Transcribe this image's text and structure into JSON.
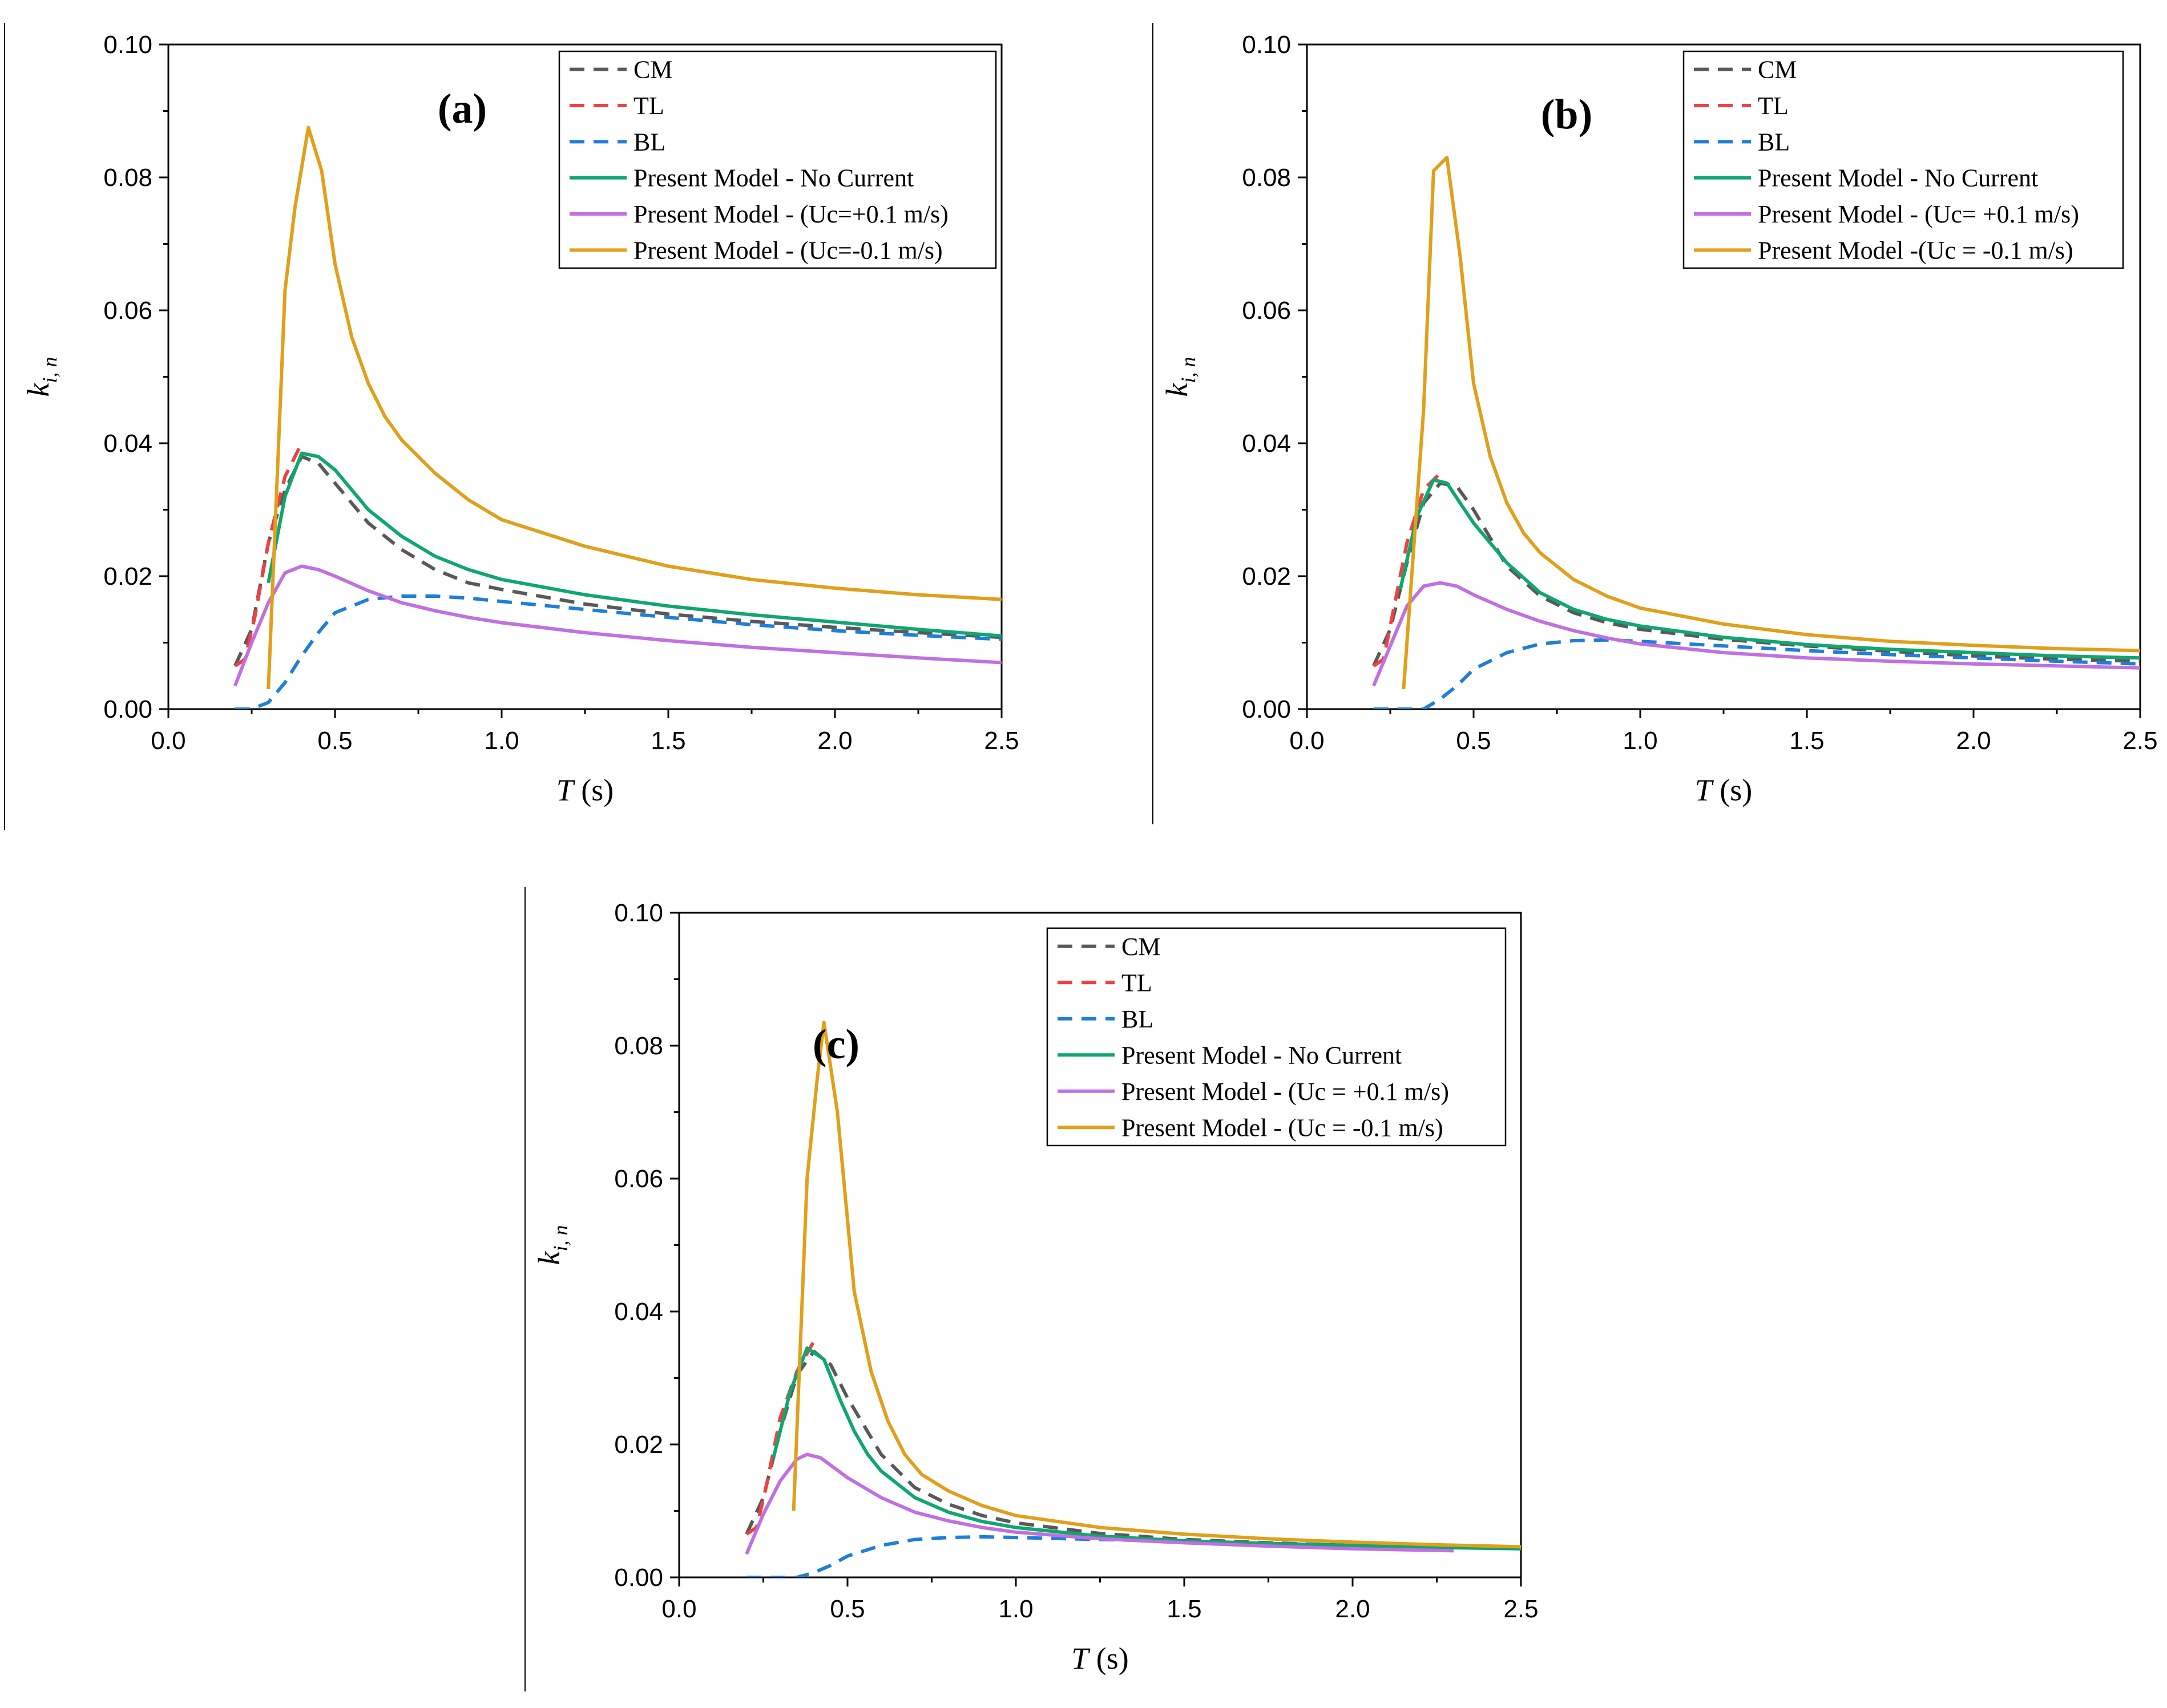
{
  "chart_data": [
    {
      "type": "line",
      "panel_label": "(a)",
      "xlabel": "T (s)",
      "ylabel": "k_i, n",
      "xlim": [
        0.0,
        2.5
      ],
      "ylim": [
        0.0,
        0.1
      ],
      "x_ticks": [
        "0.0",
        "0.5",
        "1.0",
        "1.5",
        "2.0",
        "2.5"
      ],
      "y_ticks": [
        "0.00",
        "0.02",
        "0.04",
        "0.06",
        "0.08",
        "0.10"
      ],
      "legend_position": "top-right",
      "series": [
        {
          "name": "CM",
          "color": "#595959",
          "style": "dashed",
          "x": [
            0.2,
            0.25,
            0.3,
            0.35,
            0.4,
            0.45,
            0.5,
            0.55,
            0.6,
            0.7,
            0.8,
            0.9,
            1.0,
            1.25,
            1.5,
            1.75,
            2.0,
            2.25,
            2.5
          ],
          "y": [
            0.0065,
            0.012,
            0.025,
            0.033,
            0.038,
            0.037,
            0.034,
            0.031,
            0.028,
            0.024,
            0.021,
            0.019,
            0.018,
            0.0158,
            0.0143,
            0.0132,
            0.0123,
            0.0115,
            0.0108
          ]
        },
        {
          "name": "TL",
          "color": "#ef4141",
          "style": "dashed",
          "x": [
            0.2,
            0.23,
            0.26,
            0.3,
            0.35,
            0.4
          ],
          "y": [
            0.0065,
            0.0075,
            0.014,
            0.025,
            0.035,
            0.04
          ]
        },
        {
          "name": "BL",
          "color": "#1f7fd8",
          "style": "dashed",
          "x": [
            0.2,
            0.25,
            0.3,
            0.35,
            0.4,
            0.45,
            0.5,
            0.6,
            0.7,
            0.8,
            0.9,
            1.0,
            1.25,
            1.5,
            1.75,
            2.0,
            2.25,
            2.5
          ],
          "y": [
            0.0,
            0.0,
            0.001,
            0.004,
            0.008,
            0.0115,
            0.0145,
            0.0165,
            0.017,
            0.017,
            0.0167,
            0.0162,
            0.015,
            0.0138,
            0.0127,
            0.0118,
            0.0111,
            0.0105
          ]
        },
        {
          "name": "Present Model - No Current",
          "color": "#10a670",
          "style": "solid",
          "x": [
            0.3,
            0.35,
            0.4,
            0.45,
            0.5,
            0.55,
            0.6,
            0.7,
            0.8,
            0.9,
            1.0,
            1.25,
            1.5,
            1.75,
            2.0,
            2.25,
            2.5
          ],
          "y": [
            0.019,
            0.032,
            0.0385,
            0.038,
            0.036,
            0.033,
            0.03,
            0.026,
            0.023,
            0.021,
            0.0195,
            0.0172,
            0.0155,
            0.0142,
            0.0131,
            0.012,
            0.011
          ]
        },
        {
          "name": "Present Model - (Uc=+0.1 m/s)",
          "color": "#c070e0",
          "style": "solid",
          "x": [
            0.2,
            0.25,
            0.3,
            0.35,
            0.4,
            0.45,
            0.5,
            0.6,
            0.7,
            0.8,
            0.9,
            1.0,
            1.25,
            1.5,
            1.75,
            2.0,
            2.25,
            2.5
          ],
          "y": [
            0.0035,
            0.01,
            0.016,
            0.0205,
            0.0215,
            0.021,
            0.02,
            0.0178,
            0.016,
            0.0148,
            0.0138,
            0.013,
            0.0115,
            0.0103,
            0.0093,
            0.0085,
            0.0077,
            0.007
          ]
        },
        {
          "name": "Present Model - (Uc=-0.1 m/s)",
          "color": "#e0a01c",
          "style": "solid",
          "x": [
            0.3,
            0.35,
            0.38,
            0.42,
            0.46,
            0.5,
            0.55,
            0.6,
            0.65,
            0.7,
            0.8,
            0.9,
            1.0,
            1.25,
            1.5,
            1.75,
            2.0,
            2.25,
            2.5
          ],
          "y": [
            0.003,
            0.063,
            0.0755,
            0.0875,
            0.081,
            0.067,
            0.056,
            0.049,
            0.044,
            0.0405,
            0.0355,
            0.0315,
            0.0285,
            0.0245,
            0.0215,
            0.0195,
            0.0182,
            0.0172,
            0.0165
          ]
        }
      ],
      "legend": [
        "CM",
        "TL",
        "BL",
        "Present Model - No Current",
        "Present Model - (Uc=+0.1 m/s)",
        "Present Model - (Uc=-0.1 m/s)"
      ]
    },
    {
      "type": "line",
      "panel_label": "(b)",
      "xlabel": "T (s)",
      "ylabel": "k_i, n",
      "xlim": [
        0.0,
        2.5
      ],
      "ylim": [
        0.0,
        0.1
      ],
      "x_ticks": [
        "0.0",
        "0.5",
        "1.0",
        "1.5",
        "2.0",
        "2.5"
      ],
      "y_ticks": [
        "0.00",
        "0.02",
        "0.04",
        "0.06",
        "0.08",
        "0.10"
      ],
      "legend_position": "top-right",
      "series": [
        {
          "name": "CM",
          "color": "#595959",
          "style": "dashed",
          "x": [
            0.2,
            0.25,
            0.3,
            0.35,
            0.4,
            0.45,
            0.5,
            0.6,
            0.7,
            0.8,
            0.9,
            1.0,
            1.25,
            1.5,
            1.75,
            2.0,
            2.25,
            2.5
          ],
          "y": [
            0.0065,
            0.012,
            0.022,
            0.031,
            0.034,
            0.0335,
            0.03,
            0.0215,
            0.017,
            0.0145,
            0.013,
            0.012,
            0.0105,
            0.0095,
            0.0087,
            0.008,
            0.0075,
            0.0072
          ]
        },
        {
          "name": "TL",
          "color": "#ef4141",
          "style": "dashed",
          "x": [
            0.2,
            0.23,
            0.26,
            0.3,
            0.35,
            0.4
          ],
          "y": [
            0.0065,
            0.0075,
            0.015,
            0.025,
            0.033,
            0.0355
          ]
        },
        {
          "name": "BL",
          "color": "#1f7fd8",
          "style": "dashed",
          "x": [
            0.2,
            0.25,
            0.3,
            0.35,
            0.4,
            0.45,
            0.5,
            0.6,
            0.7,
            0.8,
            0.9,
            1.0,
            1.25,
            1.5,
            1.75,
            2.0,
            2.25,
            2.5
          ],
          "y": [
            0.0,
            0.0,
            0.0,
            0.0,
            0.0015,
            0.0035,
            0.006,
            0.0085,
            0.0098,
            0.0103,
            0.0104,
            0.0102,
            0.0095,
            0.0088,
            0.0082,
            0.0077,
            0.0072,
            0.0068
          ]
        },
        {
          "name": "Present Model - No Current",
          "color": "#10a670",
          "style": "solid",
          "x": [
            0.28,
            0.33,
            0.38,
            0.42,
            0.46,
            0.5,
            0.55,
            0.6,
            0.7,
            0.8,
            0.9,
            1.0,
            1.25,
            1.5,
            1.75,
            2.0,
            2.25,
            2.5
          ],
          "y": [
            0.018,
            0.029,
            0.0345,
            0.034,
            0.031,
            0.028,
            0.025,
            0.022,
            0.0175,
            0.015,
            0.0135,
            0.0125,
            0.0108,
            0.0097,
            0.009,
            0.0085,
            0.008,
            0.0077
          ]
        },
        {
          "name": "Present Model - (Uc= +0.1 m/s)",
          "color": "#c070e0",
          "style": "solid",
          "x": [
            0.2,
            0.25,
            0.3,
            0.35,
            0.4,
            0.45,
            0.5,
            0.6,
            0.7,
            0.8,
            0.9,
            1.0,
            1.25,
            1.5,
            1.75,
            2.0,
            2.25,
            2.5
          ],
          "y": [
            0.0035,
            0.0095,
            0.0155,
            0.0185,
            0.019,
            0.0185,
            0.0172,
            0.015,
            0.0132,
            0.0118,
            0.0107,
            0.0098,
            0.0085,
            0.0077,
            0.0072,
            0.0068,
            0.0065,
            0.0062
          ]
        },
        {
          "name": "Present Model -(Uc = -0.1 m/s)",
          "color": "#e0a01c",
          "style": "solid",
          "x": [
            0.29,
            0.35,
            0.38,
            0.42,
            0.46,
            0.5,
            0.55,
            0.6,
            0.65,
            0.7,
            0.8,
            0.9,
            1.0,
            1.25,
            1.5,
            1.75,
            2.0,
            2.25,
            2.5
          ],
          "y": [
            0.003,
            0.045,
            0.081,
            0.083,
            0.068,
            0.049,
            0.038,
            0.031,
            0.0265,
            0.0235,
            0.0195,
            0.017,
            0.0152,
            0.0128,
            0.0112,
            0.0102,
            0.0096,
            0.0091,
            0.0088
          ]
        }
      ],
      "legend": [
        "CM",
        "TL",
        "BL",
        "Present Model - No Current",
        "Present Model - (Uc= +0.1 m/s)",
        "Present Model -(Uc = -0.1 m/s)"
      ]
    },
    {
      "type": "line",
      "panel_label": "(c)",
      "xlabel": "T (s)",
      "ylabel": "k_i, n",
      "xlim": [
        0.0,
        2.5
      ],
      "ylim": [
        0.0,
        0.1
      ],
      "x_ticks": [
        "0.0",
        "0.5",
        "1.0",
        "1.5",
        "2.0",
        "2.5"
      ],
      "y_ticks": [
        "0.00",
        "0.02",
        "0.04",
        "0.06",
        "0.08",
        "0.10"
      ],
      "legend_position": "top-right",
      "series": [
        {
          "name": "CM",
          "color": "#595959",
          "style": "dashed",
          "x": [
            0.2,
            0.25,
            0.3,
            0.35,
            0.4,
            0.45,
            0.5,
            0.6,
            0.7,
            0.8,
            0.9,
            1.0,
            1.25,
            1.5,
            1.75,
            2.0,
            2.25,
            2.5
          ],
          "y": [
            0.0065,
            0.012,
            0.022,
            0.0305,
            0.034,
            0.032,
            0.027,
            0.0185,
            0.0135,
            0.011,
            0.0093,
            0.0082,
            0.0066,
            0.0057,
            0.0052,
            0.0048,
            0.0046,
            0.0044
          ]
        },
        {
          "name": "TL",
          "color": "#ef4141",
          "style": "dashed",
          "x": [
            0.2,
            0.23,
            0.26,
            0.3,
            0.35,
            0.4
          ],
          "y": [
            0.0065,
            0.0075,
            0.014,
            0.024,
            0.031,
            0.0355
          ]
        },
        {
          "name": "BL",
          "color": "#1f7fd8",
          "style": "dashed",
          "x": [
            0.2,
            0.3,
            0.35,
            0.4,
            0.45,
            0.5,
            0.6,
            0.7,
            0.8,
            0.9,
            1.0,
            1.25,
            1.5,
            1.75,
            2.0,
            2.25,
            2.5
          ],
          "y": [
            0.0,
            0.0,
            0.0,
            0.0007,
            0.0018,
            0.0032,
            0.0048,
            0.0057,
            0.006,
            0.0061,
            0.006,
            0.0057,
            0.0054,
            0.0051,
            0.0048,
            0.0046,
            0.0044
          ]
        },
        {
          "name": "Present Model - No Current",
          "color": "#10a670",
          "style": "solid",
          "x": [
            0.28,
            0.33,
            0.38,
            0.43,
            0.48,
            0.52,
            0.56,
            0.6,
            0.7,
            0.8,
            0.9,
            1.0,
            1.25,
            1.5,
            1.75,
            2.0,
            2.25,
            2.5
          ],
          "y": [
            0.018,
            0.028,
            0.0345,
            0.0328,
            0.0265,
            0.022,
            0.0185,
            0.016,
            0.012,
            0.0098,
            0.0084,
            0.0075,
            0.0062,
            0.0055,
            0.0051,
            0.0048,
            0.0045,
            0.0043
          ]
        },
        {
          "name": "Present Model - (Uc = +0.1 m/s)",
          "color": "#c070e0",
          "style": "solid",
          "x": [
            0.2,
            0.25,
            0.3,
            0.35,
            0.38,
            0.42,
            0.46,
            0.5,
            0.6,
            0.7,
            0.8,
            0.9,
            1.0,
            1.25,
            1.5,
            1.75,
            2.0,
            2.3
          ],
          "y": [
            0.0035,
            0.0095,
            0.0145,
            0.0178,
            0.0185,
            0.018,
            0.0165,
            0.015,
            0.012,
            0.0098,
            0.0085,
            0.0075,
            0.0068,
            0.0058,
            0.0052,
            0.0047,
            0.0043,
            0.004
          ]
        },
        {
          "name": "Present Model - (Uc = -0.1 m/s)",
          "color": "#e0a01c",
          "style": "solid",
          "x": [
            0.34,
            0.38,
            0.41,
            0.43,
            0.47,
            0.52,
            0.57,
            0.62,
            0.67,
            0.72,
            0.8,
            0.9,
            1.0,
            1.25,
            1.5,
            1.75,
            2.0,
            2.25,
            2.5
          ],
          "y": [
            0.01,
            0.06,
            0.075,
            0.0835,
            0.07,
            0.043,
            0.031,
            0.0235,
            0.0185,
            0.0155,
            0.013,
            0.0108,
            0.0093,
            0.0075,
            0.0065,
            0.0058,
            0.0053,
            0.0049,
            0.0046
          ]
        }
      ],
      "legend": [
        "CM",
        "TL",
        "BL",
        "Present Model - No Current",
        "Present Model - (Uc = +0.1 m/s)",
        "Present Model - (Uc = -0.1 m/s)"
      ]
    }
  ]
}
